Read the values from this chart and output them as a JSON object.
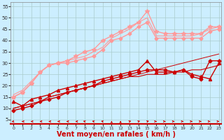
{
  "background_color": "#cceeff",
  "grid_color": "#aacccc",
  "xlabel": "Vent moyen/en rafales ( km/h )",
  "xlabel_color": "#cc0000",
  "xlabel_fontsize": 7,
  "ylabel_ticks": [
    5,
    10,
    15,
    20,
    25,
    30,
    35,
    40,
    45,
    50,
    55
  ],
  "xticks": [
    0,
    1,
    2,
    3,
    4,
    5,
    6,
    7,
    8,
    9,
    10,
    11,
    12,
    13,
    14,
    15,
    16,
    17,
    18,
    19,
    20,
    21,
    22,
    23
  ],
  "xlim": [
    -0.3,
    23.3
  ],
  "ylim": [
    3,
    57
  ],
  "series": [
    {
      "x": [
        0,
        1,
        2,
        3,
        4,
        5,
        6,
        7,
        8,
        9,
        10,
        11,
        12,
        13,
        14,
        15,
        16,
        17,
        18,
        19,
        20,
        21,
        22,
        23
      ],
      "y": [
        9,
        10,
        11,
        13,
        14,
        15,
        17,
        18,
        19,
        20,
        22,
        23,
        24,
        25,
        26,
        27,
        27,
        27,
        26,
        27,
        24,
        23,
        31,
        31
      ],
      "color": "#cc0000",
      "marker": "D",
      "markersize": 2.5,
      "linewidth": 1.0
    },
    {
      "x": [
        0,
        1,
        2,
        3,
        4,
        5,
        6,
        7,
        8,
        9,
        10,
        11,
        12,
        13,
        14,
        15,
        16,
        17,
        18,
        19,
        20,
        21,
        22,
        23
      ],
      "y": [
        10,
        11,
        12,
        13,
        15,
        16,
        17,
        18,
        19,
        20,
        21,
        22,
        23,
        24,
        24,
        25,
        25,
        25,
        26,
        26,
        27,
        27,
        28,
        29
      ],
      "color": "#cc0000",
      "marker": null,
      "markersize": 0,
      "linewidth": 0.8
    },
    {
      "x": [
        0,
        1,
        2,
        3,
        4,
        5,
        6,
        7,
        8,
        9,
        10,
        11,
        12,
        13,
        14,
        15,
        16,
        17,
        18,
        19,
        20,
        21,
        22,
        23
      ],
      "y": [
        13,
        11,
        14,
        15,
        16,
        18,
        19,
        20,
        21,
        22,
        23,
        24,
        25,
        26,
        27,
        31,
        26,
        26,
        26,
        27,
        25,
        24,
        23,
        30
      ],
      "color": "#cc0000",
      "marker": "^",
      "markersize": 3,
      "linewidth": 1.0
    },
    {
      "x": [
        0,
        1,
        2,
        3,
        4,
        5,
        6,
        7,
        8,
        9,
        10,
        11,
        12,
        13,
        14,
        15,
        16,
        17,
        18,
        19,
        20,
        21,
        22,
        23
      ],
      "y": [
        10,
        11,
        12,
        13,
        15,
        16,
        17,
        18,
        19,
        20,
        21,
        22,
        23,
        24,
        25,
        26,
        27,
        28,
        29,
        30,
        31,
        32,
        33,
        34
      ],
      "color": "#cc0000",
      "marker": null,
      "markersize": 0,
      "linewidth": 0.7
    },
    {
      "x": [
        0,
        1,
        2,
        3,
        4,
        5,
        6,
        7,
        8,
        9,
        10,
        11,
        12,
        13,
        14,
        15,
        16,
        17,
        18,
        19,
        20,
        21,
        22,
        23
      ],
      "y": [
        15,
        17,
        21,
        26,
        29,
        30,
        30,
        31,
        32,
        33,
        36,
        40,
        41,
        43,
        46,
        48,
        41,
        41,
        41,
        41,
        41,
        41,
        44,
        45
      ],
      "color": "#ff9999",
      "marker": "D",
      "markersize": 2.5,
      "linewidth": 1.0
    },
    {
      "x": [
        0,
        1,
        2,
        3,
        4,
        5,
        6,
        7,
        8,
        9,
        10,
        11,
        12,
        13,
        14,
        15,
        16,
        17,
        18,
        19,
        20,
        21,
        22,
        23
      ],
      "y": [
        16,
        18,
        22,
        26,
        29,
        30,
        31,
        32,
        33,
        35,
        37,
        41,
        43,
        45,
        48,
        50,
        42,
        42,
        42,
        42,
        42,
        43,
        45,
        46
      ],
      "color": "#ff9999",
      "marker": null,
      "markersize": 0,
      "linewidth": 0.8
    },
    {
      "x": [
        0,
        1,
        2,
        3,
        4,
        5,
        6,
        7,
        8,
        9,
        10,
        11,
        12,
        13,
        14,
        15,
        16,
        17,
        18,
        19,
        20,
        21,
        22,
        23
      ],
      "y": [
        15,
        17,
        21,
        26,
        29,
        30,
        31,
        33,
        35,
        36,
        40,
        42,
        44,
        46,
        48,
        53,
        44,
        43,
        43,
        43,
        43,
        43,
        46,
        46
      ],
      "color": "#ff9999",
      "marker": "*",
      "markersize": 4,
      "linewidth": 1.0
    }
  ],
  "arrow_directions": [
    225,
    270,
    270,
    270,
    270,
    270,
    270,
    270,
    315,
    315,
    315,
    0,
    0,
    45,
    45,
    45,
    90,
    90,
    90,
    90,
    90,
    90,
    90,
    90
  ]
}
